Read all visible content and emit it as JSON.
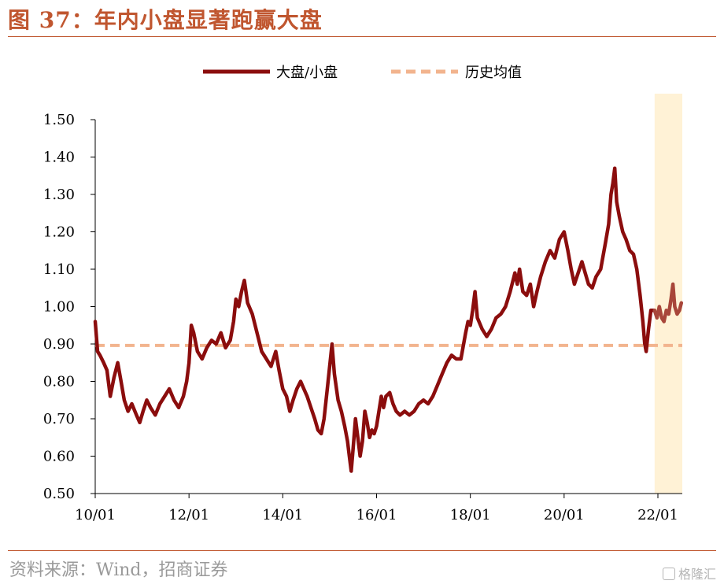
{
  "header": {
    "title": "图 37：年内小盘显著跑赢大盘"
  },
  "footer": {
    "source": "资料来源：Wind，招商证券",
    "watermark": "格隆汇"
  },
  "colors": {
    "accent": "#c0562f",
    "series_main": "#8b0d0d",
    "series_main_recent": "#a8463a",
    "series_avg": "#f2b48e",
    "highlight": "#fff2d6"
  },
  "chart_data": {
    "type": "line",
    "title": "",
    "xlabel": "",
    "ylabel": "",
    "ylim": [
      0.5,
      1.5
    ],
    "xlim": [
      2010.0,
      2022.6
    ],
    "yticks": [
      "0.50",
      "0.60",
      "0.70",
      "0.80",
      "0.90",
      "1.00",
      "1.10",
      "1.20",
      "1.30",
      "1.40",
      "1.50"
    ],
    "xticks": [
      {
        "label": "10/01",
        "x": 2010.0
      },
      {
        "label": "12/01",
        "x": 2012.0
      },
      {
        "label": "14/01",
        "x": 2014.0
      },
      {
        "label": "16/01",
        "x": 2016.0
      },
      {
        "label": "18/01",
        "x": 2018.0
      },
      {
        "label": "20/01",
        "x": 2020.0
      },
      {
        "label": "22/01",
        "x": 2022.0
      }
    ],
    "legend_position": "top-center",
    "grid": false,
    "highlight_region": [
      2021.93,
      2022.52
    ],
    "series": [
      {
        "name": "大盘/小盘",
        "style": "solid",
        "points": [
          [
            2010.0,
            0.96
          ],
          [
            2010.05,
            0.88
          ],
          [
            2010.1,
            0.87
          ],
          [
            2010.18,
            0.85
          ],
          [
            2010.25,
            0.83
          ],
          [
            2010.32,
            0.76
          ],
          [
            2010.4,
            0.81
          ],
          [
            2010.48,
            0.85
          ],
          [
            2010.55,
            0.8
          ],
          [
            2010.62,
            0.75
          ],
          [
            2010.7,
            0.72
          ],
          [
            2010.78,
            0.74
          ],
          [
            2010.88,
            0.71
          ],
          [
            2010.95,
            0.69
          ],
          [
            2011.02,
            0.72
          ],
          [
            2011.1,
            0.75
          ],
          [
            2011.18,
            0.73
          ],
          [
            2011.28,
            0.71
          ],
          [
            2011.38,
            0.74
          ],
          [
            2011.48,
            0.76
          ],
          [
            2011.58,
            0.78
          ],
          [
            2011.68,
            0.75
          ],
          [
            2011.78,
            0.73
          ],
          [
            2011.88,
            0.76
          ],
          [
            2011.95,
            0.8
          ],
          [
            2012.0,
            0.85
          ],
          [
            2012.05,
            0.95
          ],
          [
            2012.1,
            0.93
          ],
          [
            2012.18,
            0.88
          ],
          [
            2012.28,
            0.86
          ],
          [
            2012.38,
            0.89
          ],
          [
            2012.48,
            0.91
          ],
          [
            2012.58,
            0.9
          ],
          [
            2012.68,
            0.93
          ],
          [
            2012.78,
            0.89
          ],
          [
            2012.88,
            0.91
          ],
          [
            2012.95,
            0.96
          ],
          [
            2013.0,
            1.02
          ],
          [
            2013.06,
            1.0
          ],
          [
            2013.12,
            1.04
          ],
          [
            2013.18,
            1.07
          ],
          [
            2013.25,
            1.01
          ],
          [
            2013.35,
            0.98
          ],
          [
            2013.45,
            0.93
          ],
          [
            2013.55,
            0.88
          ],
          [
            2013.65,
            0.86
          ],
          [
            2013.75,
            0.84
          ],
          [
            2013.85,
            0.88
          ],
          [
            2013.92,
            0.83
          ],
          [
            2014.0,
            0.78
          ],
          [
            2014.08,
            0.76
          ],
          [
            2014.15,
            0.72
          ],
          [
            2014.22,
            0.75
          ],
          [
            2014.3,
            0.78
          ],
          [
            2014.38,
            0.8
          ],
          [
            2014.45,
            0.78
          ],
          [
            2014.52,
            0.76
          ],
          [
            2014.6,
            0.73
          ],
          [
            2014.68,
            0.7
          ],
          [
            2014.75,
            0.67
          ],
          [
            2014.82,
            0.66
          ],
          [
            2014.88,
            0.7
          ],
          [
            2014.95,
            0.78
          ],
          [
            2015.0,
            0.84
          ],
          [
            2015.05,
            0.9
          ],
          [
            2015.1,
            0.82
          ],
          [
            2015.18,
            0.75
          ],
          [
            2015.25,
            0.72
          ],
          [
            2015.32,
            0.68
          ],
          [
            2015.38,
            0.64
          ],
          [
            2015.42,
            0.6
          ],
          [
            2015.46,
            0.56
          ],
          [
            2015.5,
            0.62
          ],
          [
            2015.55,
            0.7
          ],
          [
            2015.6,
            0.65
          ],
          [
            2015.65,
            0.6
          ],
          [
            2015.7,
            0.64
          ],
          [
            2015.75,
            0.72
          ],
          [
            2015.8,
            0.69
          ],
          [
            2015.85,
            0.65
          ],
          [
            2015.9,
            0.67
          ],
          [
            2015.95,
            0.66
          ],
          [
            2016.0,
            0.68
          ],
          [
            2016.05,
            0.72
          ],
          [
            2016.1,
            0.76
          ],
          [
            2016.15,
            0.73
          ],
          [
            2016.2,
            0.76
          ],
          [
            2016.28,
            0.77
          ],
          [
            2016.35,
            0.74
          ],
          [
            2016.42,
            0.72
          ],
          [
            2016.5,
            0.71
          ],
          [
            2016.6,
            0.72
          ],
          [
            2016.7,
            0.71
          ],
          [
            2016.8,
            0.72
          ],
          [
            2016.9,
            0.74
          ],
          [
            2017.0,
            0.75
          ],
          [
            2017.1,
            0.74
          ],
          [
            2017.2,
            0.76
          ],
          [
            2017.3,
            0.79
          ],
          [
            2017.4,
            0.82
          ],
          [
            2017.5,
            0.85
          ],
          [
            2017.6,
            0.87
          ],
          [
            2017.7,
            0.86
          ],
          [
            2017.8,
            0.86
          ],
          [
            2017.9,
            0.93
          ],
          [
            2017.95,
            0.96
          ],
          [
            2018.0,
            0.95
          ],
          [
            2018.05,
            0.99
          ],
          [
            2018.1,
            1.04
          ],
          [
            2018.15,
            0.97
          ],
          [
            2018.25,
            0.94
          ],
          [
            2018.35,
            0.92
          ],
          [
            2018.45,
            0.94
          ],
          [
            2018.55,
            0.97
          ],
          [
            2018.65,
            0.98
          ],
          [
            2018.75,
            1.0
          ],
          [
            2018.85,
            1.04
          ],
          [
            2018.95,
            1.09
          ],
          [
            2019.0,
            1.06
          ],
          [
            2019.05,
            1.1
          ],
          [
            2019.12,
            1.04
          ],
          [
            2019.2,
            1.03
          ],
          [
            2019.28,
            1.06
          ],
          [
            2019.35,
            1.0
          ],
          [
            2019.42,
            1.04
          ],
          [
            2019.5,
            1.08
          ],
          [
            2019.6,
            1.12
          ],
          [
            2019.7,
            1.15
          ],
          [
            2019.8,
            1.13
          ],
          [
            2019.9,
            1.18
          ],
          [
            2020.0,
            1.2
          ],
          [
            2020.08,
            1.15
          ],
          [
            2020.15,
            1.1
          ],
          [
            2020.22,
            1.06
          ],
          [
            2020.3,
            1.09
          ],
          [
            2020.38,
            1.12
          ],
          [
            2020.45,
            1.09
          ],
          [
            2020.52,
            1.06
          ],
          [
            2020.6,
            1.05
          ],
          [
            2020.68,
            1.08
          ],
          [
            2020.78,
            1.1
          ],
          [
            2020.88,
            1.17
          ],
          [
            2020.95,
            1.22
          ],
          [
            2021.0,
            1.3
          ],
          [
            2021.04,
            1.33
          ],
          [
            2021.08,
            1.37
          ],
          [
            2021.12,
            1.28
          ],
          [
            2021.18,
            1.24
          ],
          [
            2021.25,
            1.2
          ],
          [
            2021.32,
            1.18
          ],
          [
            2021.4,
            1.15
          ],
          [
            2021.48,
            1.14
          ],
          [
            2021.55,
            1.1
          ],
          [
            2021.62,
            1.03
          ],
          [
            2021.68,
            0.96
          ],
          [
            2021.72,
            0.9
          ],
          [
            2021.75,
            0.88
          ],
          [
            2021.8,
            0.94
          ],
          [
            2021.85,
            0.99
          ],
          [
            2021.93,
            0.99
          ]
        ]
      },
      {
        "name": "",
        "style": "solid-recent",
        "points": [
          [
            2021.93,
            0.99
          ],
          [
            2021.98,
            0.97
          ],
          [
            2022.03,
            1.0
          ],
          [
            2022.08,
            0.97
          ],
          [
            2022.13,
            0.96
          ],
          [
            2022.18,
            0.99
          ],
          [
            2022.23,
            0.98
          ],
          [
            2022.28,
            1.02
          ],
          [
            2022.32,
            1.06
          ],
          [
            2022.36,
            1.0
          ],
          [
            2022.41,
            0.98
          ],
          [
            2022.46,
            0.99
          ],
          [
            2022.5,
            1.01
          ]
        ]
      },
      {
        "name": "历史均值",
        "style": "dashed",
        "points": [
          [
            2010.0,
            0.896
          ],
          [
            2022.52,
            0.896
          ]
        ]
      }
    ]
  }
}
